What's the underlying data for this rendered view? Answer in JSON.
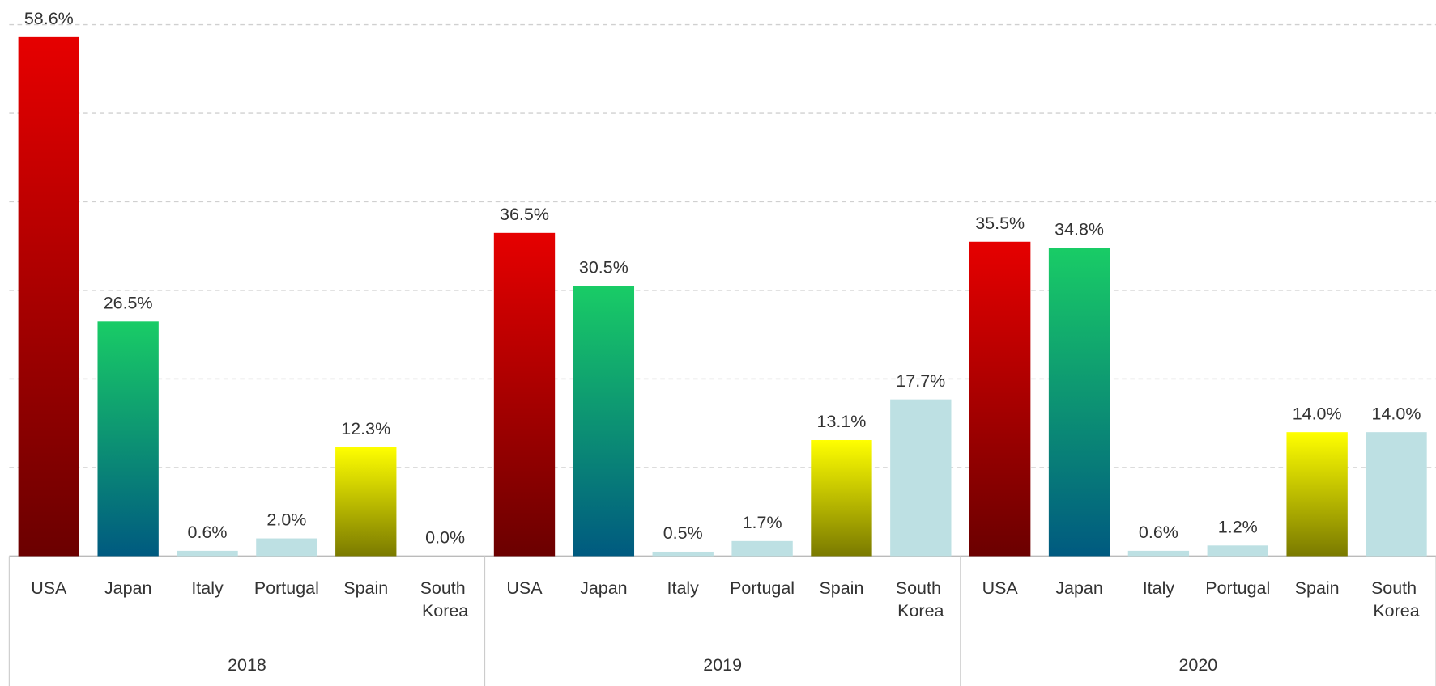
{
  "chart_data": {
    "type": "bar",
    "ylim": [
      0,
      60
    ],
    "yticks": [
      0,
      10,
      20,
      30,
      40,
      50,
      60
    ],
    "grid": true,
    "colors": [
      [
        "#e60000",
        "#6b0000"
      ],
      [
        "#19cc66",
        "#005a80"
      ],
      [
        "#bde0e3",
        "#bde0e3"
      ],
      [
        "#bde0e3",
        "#bde0e3"
      ],
      [
        "#ffff00",
        "#7a7a00"
      ],
      [
        "#bde0e3",
        "#bde0e3"
      ]
    ],
    "groups": [
      {
        "name": "2018",
        "categories": [
          "USA",
          "Japan",
          "Italy",
          "Portugal",
          "Spain",
          "South Korea"
        ],
        "values": [
          58.6,
          26.5,
          0.6,
          2.0,
          12.3,
          0.0
        ],
        "value_labels": [
          "58.6%",
          "26.5%",
          "0.6%",
          "2.0%",
          "12.3%",
          "0.0%"
        ]
      },
      {
        "name": "2019",
        "categories": [
          "USA",
          "Japan",
          "Italy",
          "Portugal",
          "Spain",
          "South Korea"
        ],
        "values": [
          36.5,
          30.5,
          0.5,
          1.7,
          13.1,
          17.7
        ],
        "value_labels": [
          "36.5%",
          "30.5%",
          "0.5%",
          "1.7%",
          "13.1%",
          "17.7%"
        ]
      },
      {
        "name": "2020",
        "categories": [
          "USA",
          "Japan",
          "Italy",
          "Portugal",
          "Spain",
          "South Korea"
        ],
        "values": [
          35.5,
          34.8,
          0.6,
          1.2,
          14.0,
          14.0
        ],
        "value_labels": [
          "35.5%",
          "34.8%",
          "0.6%",
          "1.2%",
          "14.0%",
          "14.0%"
        ]
      }
    ]
  }
}
